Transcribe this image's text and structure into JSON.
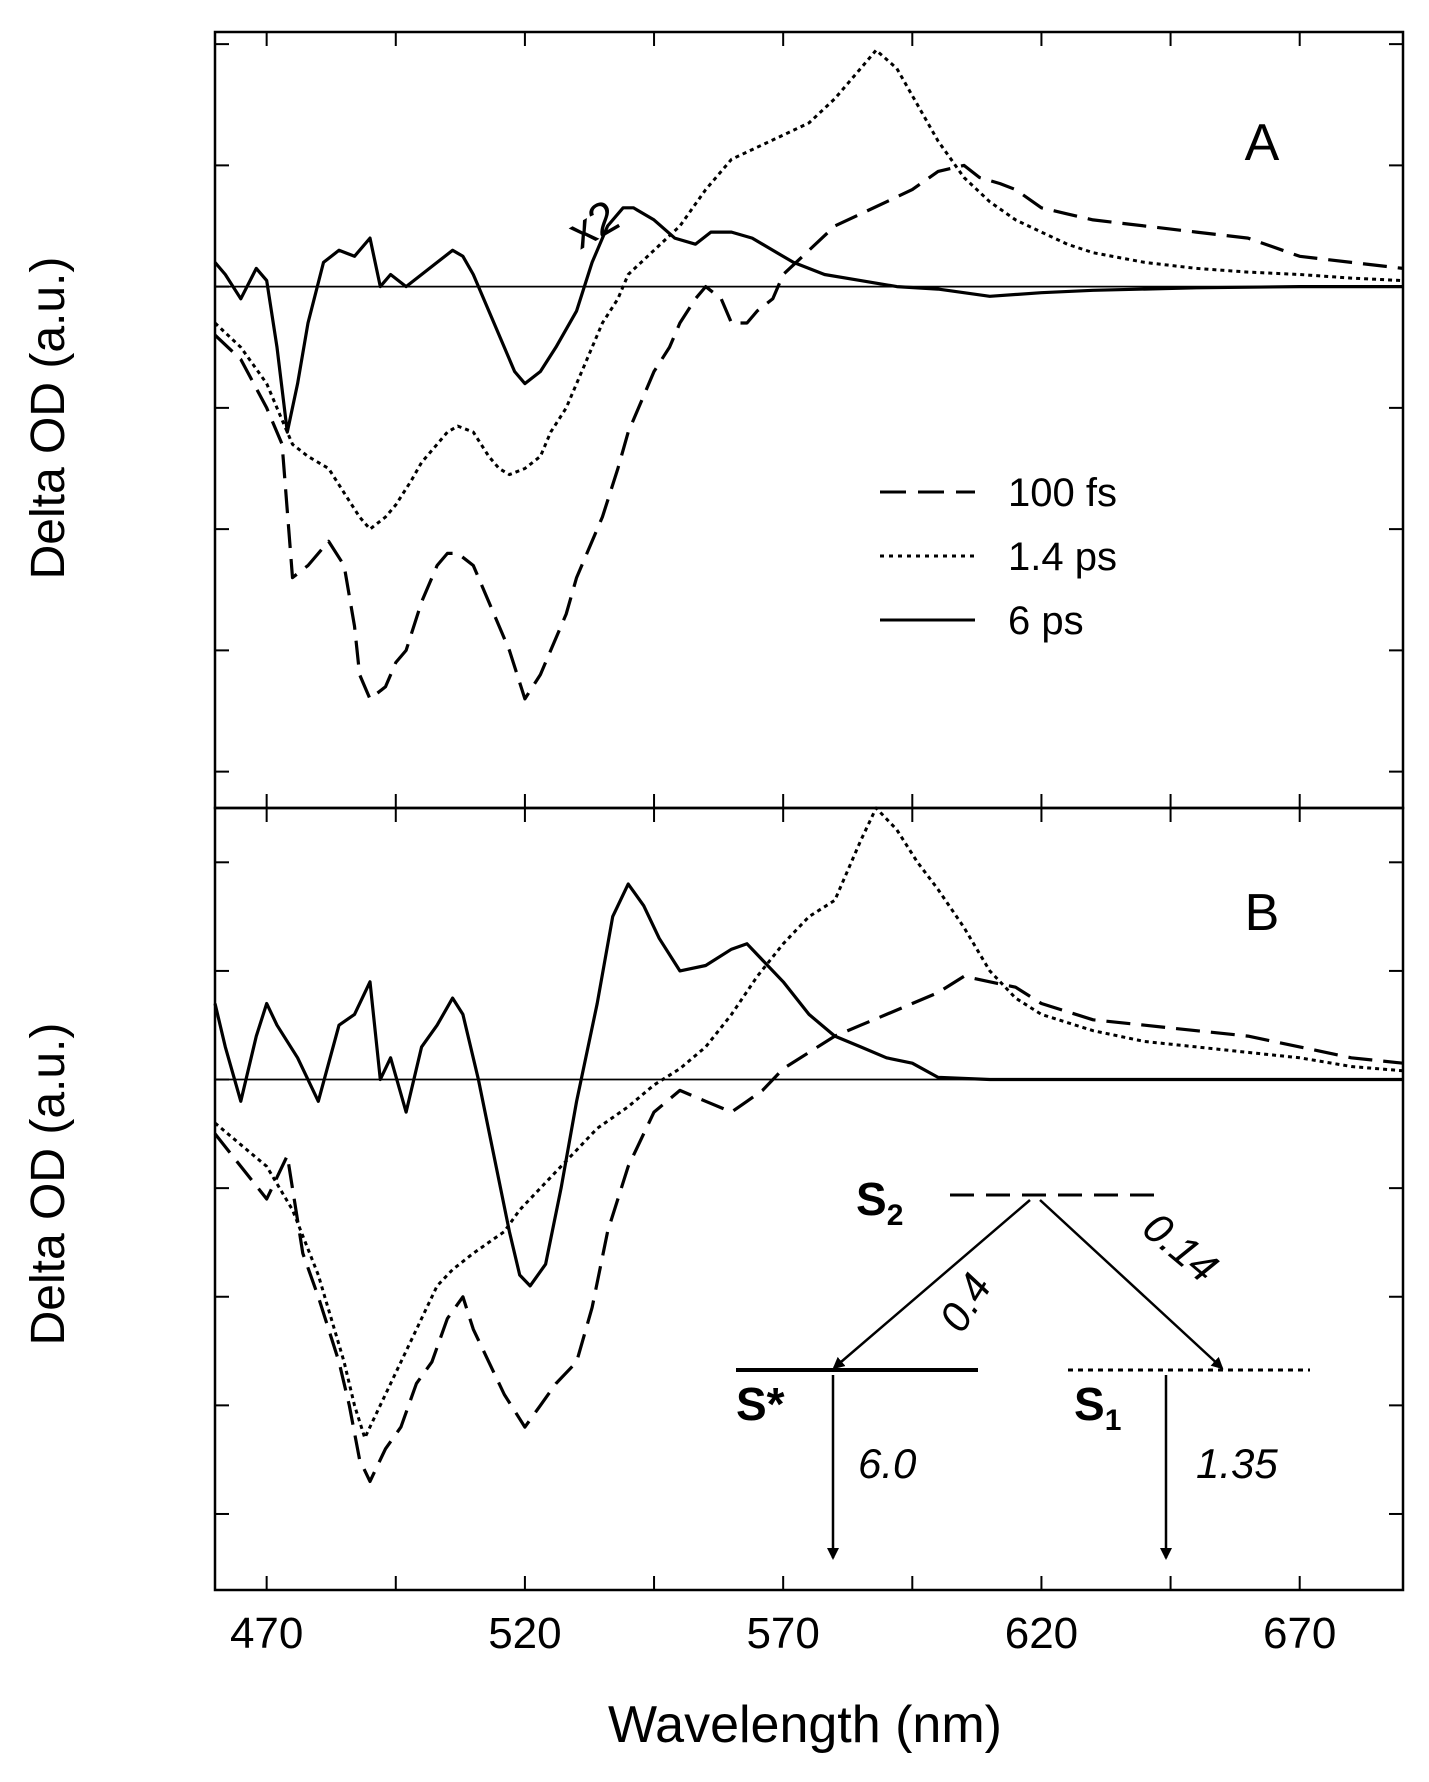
{
  "figure": {
    "ylabel": "Delta OD (a.u.)",
    "xlabel": "Wavelength (nm)",
    "x_tick_labels": [
      "470",
      "520",
      "570",
      "620",
      "670"
    ],
    "annotation_x2": "x2"
  },
  "chart_data": [
    {
      "type": "line",
      "panel_label": "A",
      "xlabel": "Wavelength (nm)",
      "ylabel": "Delta OD (a.u.)",
      "xlim": [
        460,
        690
      ],
      "ylim": [
        -4.3,
        2.1
      ],
      "annotations": [
        "x2"
      ],
      "legend": {
        "placement": "center-right",
        "entries": [
          "100 fs",
          "1.4 ps",
          "6 ps"
        ]
      },
      "series": [
        {
          "name": "100 fs",
          "style": "dashed",
          "x": [
            460,
            465,
            470,
            473,
            475,
            478,
            482,
            485,
            487,
            488,
            490,
            493,
            495,
            497,
            500,
            503,
            505,
            507,
            510,
            513,
            515,
            517,
            520,
            523,
            525,
            528,
            530,
            532,
            535,
            538,
            540,
            543,
            545,
            548,
            550,
            553,
            555,
            558,
            560,
            563,
            565,
            568,
            570,
            575,
            580,
            585,
            590,
            595,
            600,
            605,
            608,
            612,
            615,
            620,
            625,
            630,
            640,
            650,
            660,
            670,
            680,
            690
          ],
          "values": [
            -0.4,
            -0.6,
            -1.0,
            -1.3,
            -2.4,
            -2.3,
            -2.1,
            -2.3,
            -2.8,
            -3.2,
            -3.4,
            -3.3,
            -3.1,
            -3.0,
            -2.6,
            -2.3,
            -2.2,
            -2.2,
            -2.3,
            -2.6,
            -2.8,
            -3.0,
            -3.4,
            -3.2,
            -3.0,
            -2.7,
            -2.4,
            -2.2,
            -1.9,
            -1.5,
            -1.2,
            -0.9,
            -0.7,
            -0.5,
            -0.3,
            -0.1,
            0.0,
            -0.1,
            -0.3,
            -0.3,
            -0.2,
            -0.1,
            0.1,
            0.3,
            0.5,
            0.6,
            0.7,
            0.8,
            0.95,
            1.0,
            0.9,
            0.85,
            0.8,
            0.65,
            0.6,
            0.55,
            0.5,
            0.45,
            0.4,
            0.25,
            0.2,
            0.15
          ]
        },
        {
          "name": "1.4 ps",
          "style": "dotted",
          "x": [
            460,
            465,
            470,
            473,
            475,
            478,
            482,
            485,
            488,
            490,
            493,
            495,
            498,
            500,
            503,
            505,
            507,
            510,
            513,
            515,
            517,
            520,
            523,
            525,
            528,
            530,
            533,
            535,
            538,
            540,
            545,
            550,
            555,
            560,
            565,
            570,
            575,
            580,
            585,
            588,
            592,
            596,
            600,
            605,
            610,
            615,
            620,
            625,
            630,
            640,
            650,
            660,
            670,
            680,
            690
          ],
          "values": [
            -0.3,
            -0.5,
            -0.8,
            -1.1,
            -1.3,
            -1.4,
            -1.5,
            -1.7,
            -1.9,
            -2.0,
            -1.9,
            -1.8,
            -1.6,
            -1.45,
            -1.3,
            -1.2,
            -1.15,
            -1.2,
            -1.4,
            -1.5,
            -1.55,
            -1.5,
            -1.4,
            -1.2,
            -1.0,
            -0.8,
            -0.5,
            -0.3,
            -0.1,
            0.1,
            0.3,
            0.5,
            0.8,
            1.05,
            1.15,
            1.25,
            1.35,
            1.55,
            1.8,
            1.95,
            1.8,
            1.5,
            1.2,
            0.9,
            0.7,
            0.55,
            0.45,
            0.35,
            0.28,
            0.2,
            0.15,
            0.12,
            0.1,
            0.07,
            0.05
          ]
        },
        {
          "name": "6 ps",
          "style": "solid",
          "x": [
            460,
            462,
            465,
            468,
            470,
            472,
            474,
            476,
            478,
            481,
            484,
            487,
            490,
            492,
            494,
            497,
            500,
            503,
            506,
            508,
            510,
            513,
            516,
            518,
            520,
            523,
            526,
            530,
            533,
            536,
            539,
            541,
            545,
            549,
            553,
            556,
            560,
            564,
            568,
            572,
            578,
            585,
            592,
            600,
            610,
            620,
            630,
            650,
            670,
            690
          ],
          "values": [
            0.2,
            0.1,
            -0.1,
            0.15,
            0.05,
            -0.5,
            -1.2,
            -0.8,
            -0.3,
            0.2,
            0.3,
            0.25,
            0.4,
            0.0,
            0.1,
            0.0,
            0.1,
            0.2,
            0.3,
            0.25,
            0.1,
            -0.2,
            -0.5,
            -0.7,
            -0.8,
            -0.7,
            -0.5,
            -0.2,
            0.2,
            0.5,
            0.65,
            0.65,
            0.55,
            0.4,
            0.35,
            0.45,
            0.45,
            0.4,
            0.3,
            0.2,
            0.1,
            0.05,
            0.0,
            -0.02,
            -0.08,
            -0.05,
            -0.03,
            -0.01,
            0.0,
            0.0
          ]
        }
      ]
    },
    {
      "type": "line",
      "panel_label": "B",
      "xlabel": "Wavelength (nm)",
      "ylabel": "Delta OD (a.u.)",
      "xlim": [
        460,
        690
      ],
      "ylim": [
        -4.7,
        2.5
      ],
      "series": [
        {
          "name": "100 fs",
          "style": "dashed",
          "x": [
            460,
            465,
            470,
            474,
            477,
            480,
            484,
            486,
            488,
            490,
            493,
            496,
            499,
            502,
            505,
            508,
            510,
            513,
            516,
            520,
            523,
            526,
            530,
            533,
            536,
            540,
            545,
            550,
            555,
            560,
            563,
            566,
            570,
            575,
            580,
            585,
            590,
            595,
            600,
            605,
            610,
            615,
            620,
            630,
            640,
            650,
            660,
            670,
            680,
            690
          ],
          "values": [
            -0.5,
            -0.8,
            -1.1,
            -0.7,
            -1.6,
            -2.0,
            -2.6,
            -3.0,
            -3.5,
            -3.7,
            -3.4,
            -3.2,
            -2.8,
            -2.6,
            -2.2,
            -2.0,
            -2.3,
            -2.6,
            -2.9,
            -3.2,
            -3.0,
            -2.8,
            -2.6,
            -2.1,
            -1.4,
            -0.8,
            -0.3,
            -0.1,
            -0.2,
            -0.3,
            -0.2,
            -0.1,
            0.1,
            0.25,
            0.4,
            0.5,
            0.6,
            0.7,
            0.8,
            0.95,
            0.9,
            0.85,
            0.7,
            0.55,
            0.5,
            0.45,
            0.4,
            0.3,
            0.2,
            0.15
          ]
        },
        {
          "name": "1.4 ps",
          "style": "dotted",
          "x": [
            460,
            465,
            470,
            475,
            480,
            485,
            487,
            489,
            491,
            494,
            497,
            500,
            503,
            506,
            510,
            513,
            516,
            519,
            522,
            526,
            530,
            534,
            540,
            545,
            550,
            555,
            560,
            565,
            570,
            575,
            580,
            585,
            588,
            592,
            596,
            600,
            605,
            610,
            615,
            620,
            630,
            640,
            650,
            660,
            670,
            680,
            690
          ],
          "values": [
            -0.4,
            -0.6,
            -0.8,
            -1.2,
            -1.8,
            -2.6,
            -3.0,
            -3.3,
            -3.1,
            -2.8,
            -2.5,
            -2.2,
            -1.9,
            -1.75,
            -1.6,
            -1.5,
            -1.4,
            -1.2,
            -1.05,
            -0.85,
            -0.65,
            -0.45,
            -0.25,
            -0.05,
            0.1,
            0.3,
            0.6,
            0.95,
            1.25,
            1.5,
            1.65,
            2.2,
            2.5,
            2.3,
            2.0,
            1.75,
            1.4,
            1.0,
            0.75,
            0.6,
            0.45,
            0.35,
            0.3,
            0.25,
            0.2,
            0.12,
            0.08
          ]
        },
        {
          "name": "6 ps",
          "style": "solid",
          "x": [
            460,
            462,
            465,
            468,
            470,
            472,
            476,
            480,
            484,
            487,
            490,
            492,
            494,
            497,
            500,
            503,
            506,
            508,
            511,
            514,
            517,
            519,
            521,
            524,
            527,
            530,
            534,
            537,
            540,
            543,
            546,
            550,
            555,
            560,
            563,
            566,
            570,
            575,
            580,
            585,
            590,
            595,
            600,
            610,
            630,
            650,
            670,
            690
          ],
          "values": [
            0.7,
            0.3,
            -0.2,
            0.4,
            0.7,
            0.5,
            0.2,
            -0.2,
            0.5,
            0.6,
            0.9,
            0.0,
            0.2,
            -0.3,
            0.3,
            0.5,
            0.75,
            0.6,
            0.0,
            -0.7,
            -1.4,
            -1.8,
            -1.9,
            -1.7,
            -1.0,
            -0.2,
            0.7,
            1.5,
            1.8,
            1.6,
            1.3,
            1.0,
            1.05,
            1.2,
            1.25,
            1.1,
            0.9,
            0.6,
            0.4,
            0.3,
            0.2,
            0.15,
            0.02,
            0.0,
            0.0,
            0.0,
            0.0,
            0.0
          ]
        }
      ],
      "inset_diagram": {
        "levels": [
          {
            "label": "S2",
            "base": "S",
            "subscript": "2",
            "style": "dashed"
          },
          {
            "label": "S*",
            "base": "S*",
            "subscript": "",
            "style": "solid"
          },
          {
            "label": "S1",
            "base": "S",
            "subscript": "1",
            "style": "dotted"
          }
        ],
        "transitions": [
          {
            "from": "S2",
            "to": "S*",
            "value": "0.4"
          },
          {
            "from": "S2",
            "to": "S1",
            "value": "0.14"
          },
          {
            "from": "S*",
            "to": "ground",
            "value": "6.0"
          },
          {
            "from": "S1",
            "to": "ground",
            "value": "1.35"
          }
        ]
      }
    }
  ]
}
